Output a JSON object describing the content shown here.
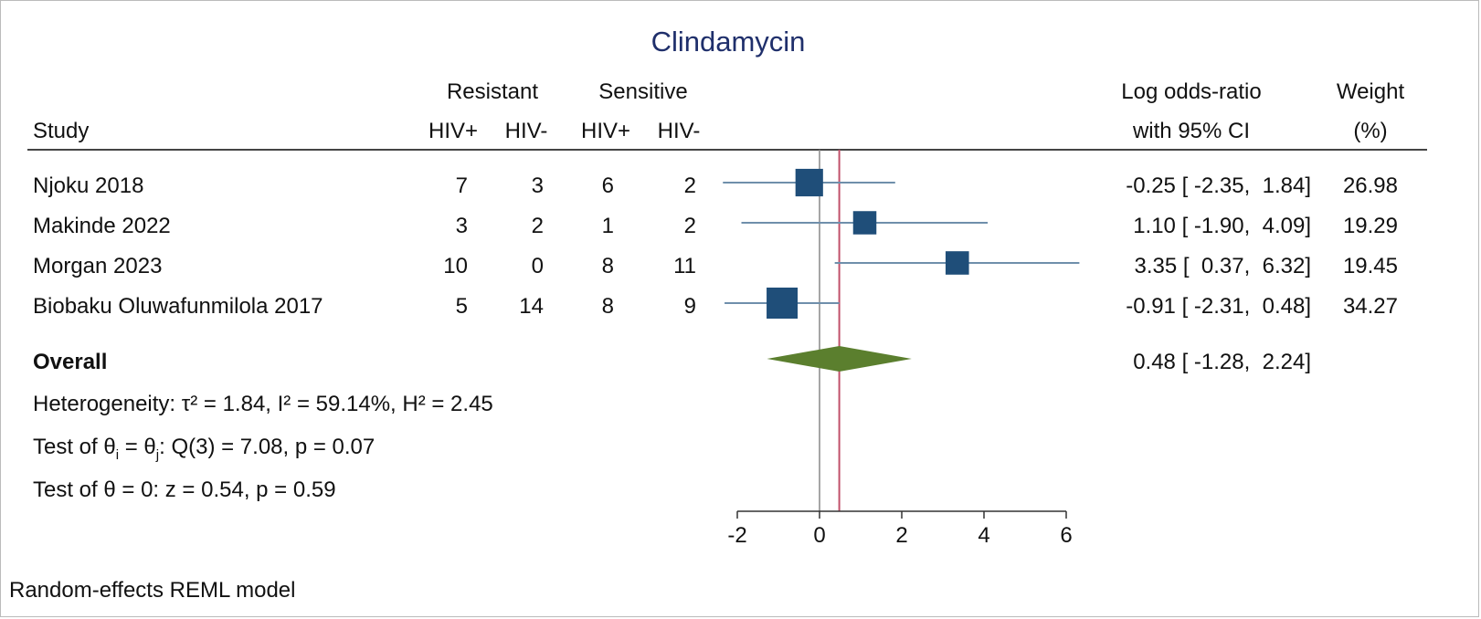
{
  "chart_data": {
    "type": "forest",
    "title": "Clindamycin",
    "headers": {
      "study": "Study",
      "resistant": "Resistant",
      "sensitive": "Sensitive",
      "hiv_pos": "HIV+",
      "hiv_neg": "HIV-",
      "effect_line1": "Log odds-ratio",
      "effect_line2": "with 95% CI",
      "weight_line1": "Weight",
      "weight_line2": "(%)"
    },
    "studies": [
      {
        "name": "Njoku 2018",
        "res_pos": "7",
        "res_neg": "3",
        "sens_pos": "6",
        "sens_neg": "2",
        "estimate": -0.25,
        "lower": -2.35,
        "upper": 1.84,
        "ci_text": "-0.25 [ -2.35,  1.84]",
        "weight": 26.98,
        "weight_text": "26.98"
      },
      {
        "name": "Makinde 2022",
        "res_pos": "3",
        "res_neg": "2",
        "sens_pos": "1",
        "sens_neg": "2",
        "estimate": 1.1,
        "lower": -1.9,
        "upper": 4.09,
        "ci_text": "1.10 [ -1.90,  4.09]",
        "weight": 19.29,
        "weight_text": "19.29"
      },
      {
        "name": "Morgan 2023",
        "res_pos": "10",
        "res_neg": "0",
        "sens_pos": "8",
        "sens_neg": "11",
        "estimate": 3.35,
        "lower": 0.37,
        "upper": 6.32,
        "ci_text": "3.35 [  0.37,  6.32]",
        "weight": 19.45,
        "weight_text": "19.45"
      },
      {
        "name": "Biobaku Oluwafunmilola 2017",
        "res_pos": "5",
        "res_neg": "14",
        "sens_pos": "8",
        "sens_neg": "9",
        "estimate": -0.91,
        "lower": -2.31,
        "upper": 0.48,
        "ci_text": "-0.91 [ -2.31,  0.48]",
        "weight": 34.27,
        "weight_text": "34.27"
      }
    ],
    "overall": {
      "label": "Overall",
      "estimate": 0.48,
      "lower": -1.28,
      "upper": 2.24,
      "ci_text": "0.48 [ -1.28,  2.24]"
    },
    "stats": {
      "heterogeneity": "Heterogeneity: τ² = 1.84, I² = 59.14%, H² = 2.45",
      "test_equal_pre": "Test of θ",
      "test_equal_sub_i": "i",
      "test_equal_mid": " = θ",
      "test_equal_sub_j": "j",
      "test_equal_post": ": Q(3) = 7.08, p = 0.07",
      "test_zero": "Test of θ = 0: z = 0.54, p = 0.59"
    },
    "footnote": "Random-effects REML model",
    "x_axis": {
      "min": -2.5,
      "max": 6.32,
      "ticks": [
        -2,
        0,
        2,
        4,
        6
      ]
    },
    "colors": {
      "marker": "#1f4e79",
      "ci_line": "#6f8fab",
      "diamond": "#5b7f2e",
      "null_line": "#888888",
      "overall_line": "#c0506a"
    }
  }
}
